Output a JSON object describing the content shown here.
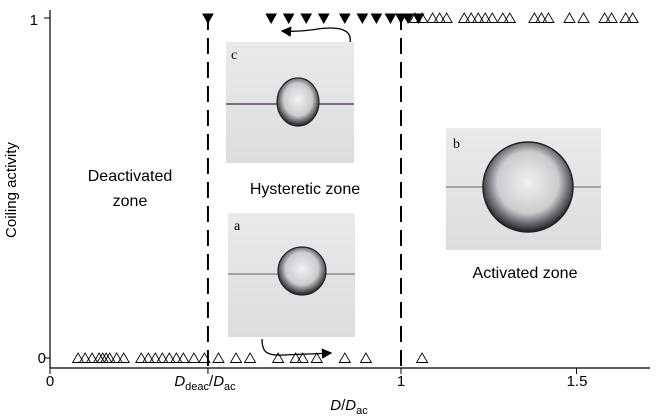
{
  "chart_data": {
    "type": "scatter",
    "xlabel": {
      "main": "D",
      "sep": "/",
      "main2": "D",
      "sub": "ac"
    },
    "ylabel": "Coiling activity",
    "xlim": [
      0,
      1.7
    ],
    "ylim": [
      0,
      1
    ],
    "x_ticks": [
      {
        "value": 0,
        "label": "0"
      },
      {
        "value": 0.45,
        "label_main": "D",
        "label_sub": "deac",
        "label_sep": "/",
        "label_main2": "D",
        "label_sub2": "ac"
      },
      {
        "value": 1,
        "label": "1"
      },
      {
        "value": 1.5,
        "label": "1.5"
      }
    ],
    "y_ticks": [
      {
        "value": 0,
        "label": "0"
      },
      {
        "value": 1,
        "label": "1"
      }
    ],
    "thresholds": [
      0.45,
      1.0
    ],
    "grid": false,
    "series": [
      {
        "marker": "filled-down-triangle",
        "y": 1,
        "x": [
          0.45,
          0.63,
          0.68,
          0.73,
          0.78,
          0.84,
          0.89,
          0.93,
          0.97,
          1.0,
          1.02,
          1.05
        ]
      },
      {
        "marker": "open-up-triangle",
        "y": 1,
        "x": [
          1.04,
          1.06,
          1.09,
          1.11,
          1.13,
          1.18,
          1.2,
          1.22,
          1.24,
          1.26,
          1.29,
          1.31,
          1.38,
          1.4,
          1.42,
          1.48,
          1.52,
          1.58,
          1.6,
          1.64,
          1.66
        ]
      },
      {
        "marker": "open-up-triangle",
        "y": 0,
        "x": [
          0.08,
          0.1,
          0.12,
          0.14,
          0.15,
          0.16,
          0.17,
          0.19,
          0.21,
          0.26,
          0.28,
          0.3,
          0.32,
          0.34,
          0.36,
          0.38,
          0.41,
          0.44,
          0.48,
          0.53,
          0.57,
          0.65,
          0.7,
          0.72,
          0.76,
          0.84,
          0.9,
          1.06
        ]
      }
    ],
    "zones": [
      {
        "line1": "Deactivated",
        "line2": "zone"
      },
      {
        "line1": "Hysteretic zone"
      },
      {
        "line1": "Activated zone"
      }
    ],
    "photos": [
      {
        "letter": "c",
        "drop": "small-elongated"
      },
      {
        "letter": "a",
        "drop": "small-round"
      },
      {
        "letter": "b",
        "drop": "large-round"
      }
    ]
  }
}
